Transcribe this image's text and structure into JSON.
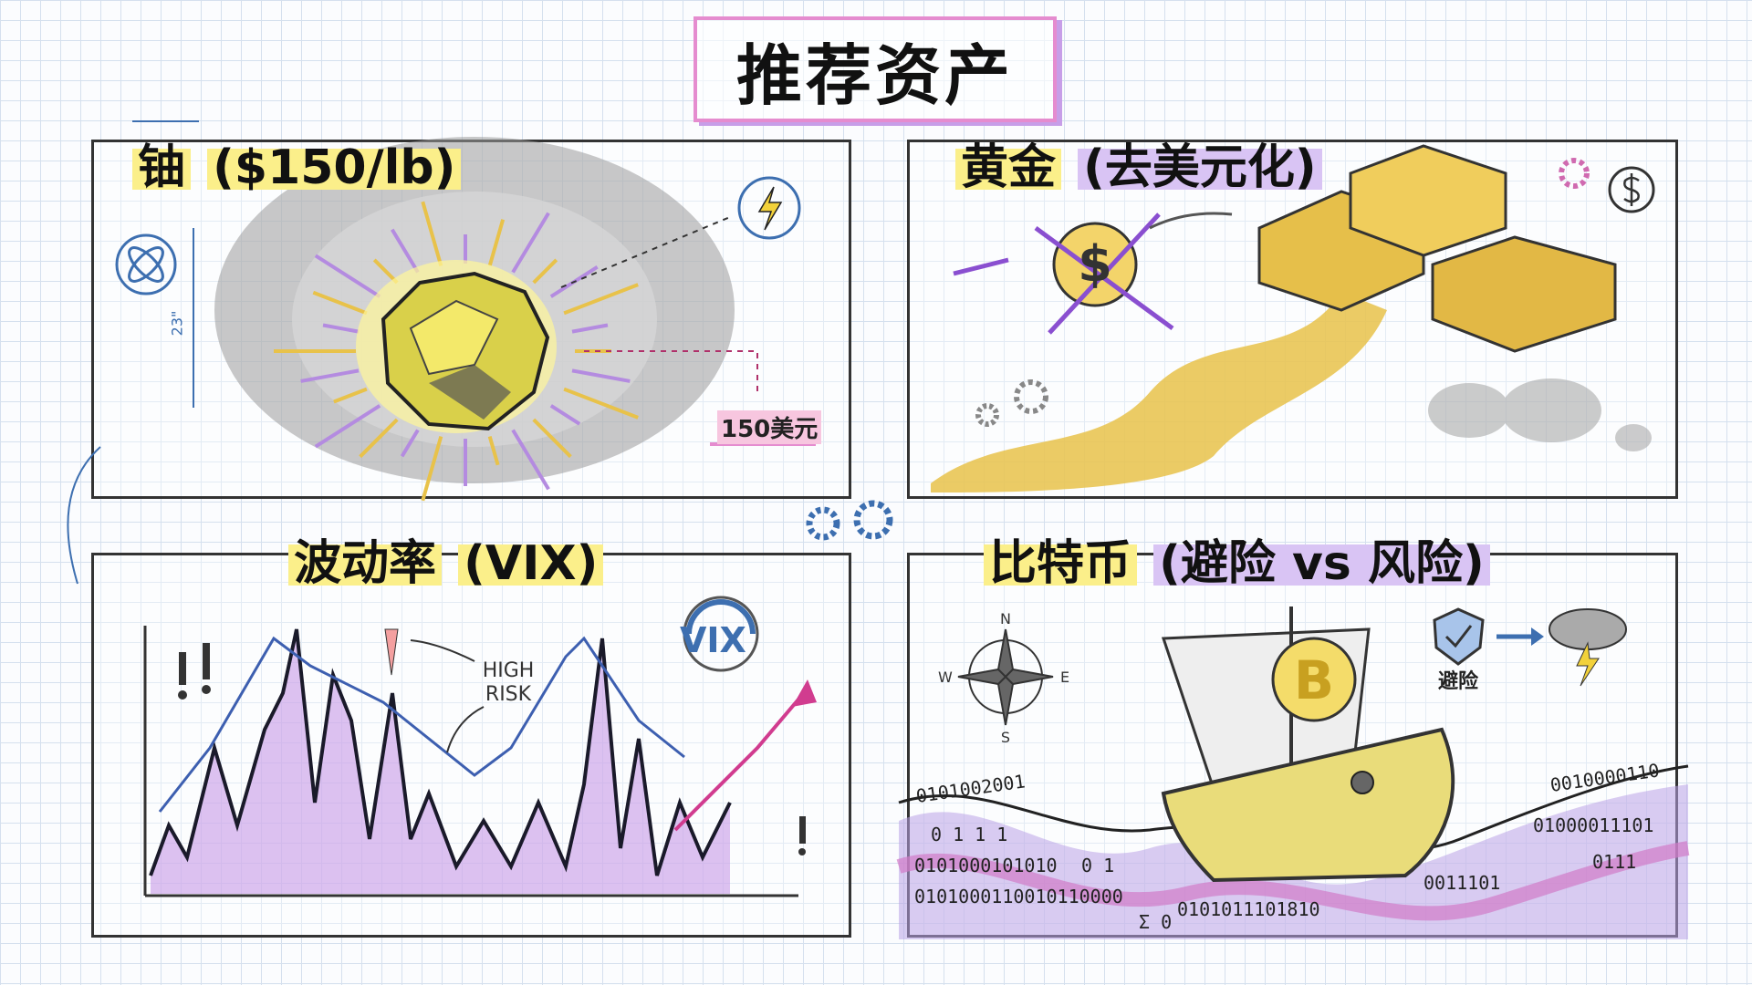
{
  "title": "推荐资产",
  "panels": {
    "uranium": {
      "heading_main": "铀",
      "heading_sub": "($150/lb)",
      "price_tag": "150美元",
      "dimension_label": "23\""
    },
    "gold": {
      "heading_main": "黄金",
      "heading_sub": "(去美元化)",
      "dollar_symbol": "$"
    },
    "volatility": {
      "heading_main": "波动率",
      "heading_sub": "(VIX)",
      "gauge_label": "VIX",
      "risk_label_1": "HIGH",
      "risk_label_2": "RISK"
    },
    "bitcoin": {
      "heading_main": "比特币",
      "heading_sub": "(避险 vs 风险)",
      "safe_haven_label": "避险",
      "coin_symbol": "B",
      "compass": {
        "n": "N",
        "e": "E",
        "s": "S",
        "w": "W"
      },
      "binary_strings": [
        "0101002001",
        "0 1 1 1",
        "0101000101010",
        "0101000110010110000",
        "0101011101810",
        "0 1",
        "01000011101",
        "0010000110",
        "0111",
        "Σ 0",
        "0011101"
      ]
    }
  },
  "colors": {
    "yellow": "#fbef8a",
    "purple": "#b48be0",
    "pink": "#e58ccf",
    "blue": "#3d6fb0",
    "gold": "#e8c24a"
  }
}
